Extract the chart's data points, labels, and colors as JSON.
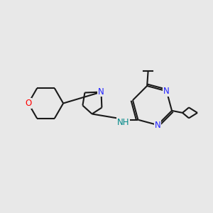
{
  "background_color": "#e8e8e8",
  "bond_color": "#1a1a1a",
  "bond_width": 1.5,
  "atom_colors": {
    "N": "#2222ff",
    "O": "#ff0000",
    "NH": "#008888"
  },
  "font_size": 8.5
}
